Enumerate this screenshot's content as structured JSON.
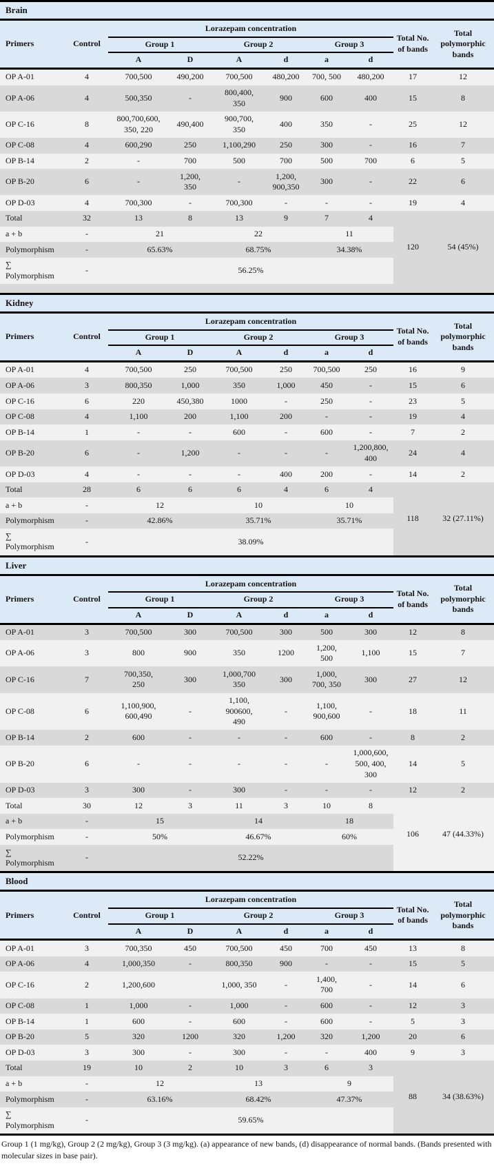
{
  "colors": {
    "header_bg": "#dce9f6",
    "row_light": "#f1f1f1",
    "row_dark": "#d9d9d9",
    "border": "#000000"
  },
  "headers": {
    "primers": "Primers",
    "control": "Control",
    "lorazepam": "Lorazepam concentration",
    "groups": [
      "Group 1",
      "Group 2",
      "Group 3"
    ],
    "subcols": [
      "A",
      "D",
      "A",
      "d",
      "a",
      "d"
    ],
    "total_bands": "Total No. of bands",
    "total_poly": "Total polymorphic bands"
  },
  "tables": [
    {
      "title": "Brain",
      "start_dark": false,
      "spacer_after": true,
      "rows": [
        [
          "OP A-01",
          "4",
          "700,500",
          "490,200",
          "700,500",
          "480,200",
          "700, 500",
          "480,200",
          "17",
          "12"
        ],
        [
          "OP A-06",
          "4",
          "500,350",
          "-",
          "800,400,\n350",
          "900",
          "600",
          "400",
          "15",
          "8"
        ],
        [
          "OP C-16",
          "8",
          "800,700,600,\n350, 220",
          "490,400",
          "900,700,\n350",
          "400",
          "350",
          "-",
          "25",
          "12"
        ],
        [
          "OP C-08",
          "4",
          "600,290",
          "250",
          "1,100,290",
          "250",
          "300",
          "-",
          "16",
          "7"
        ],
        [
          "OP B-14",
          "2",
          "-",
          "700",
          "500",
          "700",
          "500",
          "700",
          "6",
          "5"
        ],
        [
          "OP B-20",
          "6",
          "-",
          "1,200,\n350",
          "-",
          "1,200,\n900,350",
          "300",
          "-",
          "22",
          "6"
        ],
        [
          "OP D-03",
          "4",
          "700,300",
          "-",
          "700,300",
          "-",
          "-",
          "-",
          "19",
          "4"
        ]
      ],
      "total": [
        "Total",
        "32",
        "13",
        "8",
        "13",
        "9",
        "7",
        "4"
      ],
      "ab": [
        "a + b",
        "-",
        "21",
        "22",
        "11"
      ],
      "poly": [
        "Polymorphism",
        "-",
        "65.63%",
        "68.75%",
        "34.38%"
      ],
      "sigma": [
        "∑\nPolymorphism",
        "-",
        "56.25%"
      ],
      "grand": [
        "120",
        "54 (45%)"
      ]
    },
    {
      "title": "Kidney",
      "start_dark": false,
      "spacer_after": false,
      "rows": [
        [
          "OP A-01",
          "4",
          "700,500",
          "250",
          "700,500",
          "250",
          "700,500",
          "250",
          "16",
          "9"
        ],
        [
          "OP A-06",
          "3",
          "800,350",
          "1,000",
          "350",
          "1,000",
          "450",
          "-",
          "15",
          "6"
        ],
        [
          "OP C-16",
          "6",
          "220",
          "450,380",
          "1000",
          "-",
          "250",
          "-",
          "23",
          "5"
        ],
        [
          "OP C-08",
          "4",
          "1,100",
          "200",
          "1,100",
          "200",
          "-",
          "-",
          "19",
          "4"
        ],
        [
          "OP B-14",
          "1",
          "-",
          "-",
          "600",
          "-",
          "600",
          "-",
          "7",
          "2"
        ],
        [
          "OP B-20",
          "6",
          "-",
          "1,200",
          "-",
          "-",
          "-",
          "1,200,800,\n400",
          "24",
          "4"
        ],
        [
          "OP D-03",
          "4",
          "-",
          "-",
          "-",
          "400",
          "200",
          "-",
          "14",
          "2"
        ]
      ],
      "total": [
        "Total",
        "28",
        "6",
        "6",
        "6",
        "4",
        "6",
        "4"
      ],
      "ab": [
        "a + b",
        "-",
        "12",
        "10",
        "10"
      ],
      "poly": [
        "Polymorphism",
        "-",
        "42.86%",
        "35.71%",
        "35.71%"
      ],
      "sigma": [
        "∑\nPolymorphism",
        "-",
        "38.09%"
      ],
      "grand": [
        "118",
        "32 (27.11%)"
      ]
    },
    {
      "title": "Liver",
      "start_dark": true,
      "spacer_after": false,
      "rows": [
        [
          "OP A-01",
          "3",
          "700,500",
          "300",
          "700,500",
          "300",
          "500",
          "300",
          "12",
          "8"
        ],
        [
          "OP A-06",
          "3",
          "800",
          "900",
          "350",
          "1200",
          "1,200,\n500",
          "1,100",
          "15",
          "7"
        ],
        [
          "OP C-16",
          "7",
          "700,350,\n250",
          "300",
          "1,000,700\n350",
          "300",
          "1,000,\n700, 350",
          "300",
          "27",
          "12"
        ],
        [
          "OP C-08",
          "6",
          "1,100,900,\n600,490",
          "-",
          "1,100,\n900600,\n490",
          "-",
          "1,100,\n900,600",
          "-",
          "18",
          "11"
        ],
        [
          "OP B-14",
          "2",
          "600",
          "-",
          "-",
          "-",
          "600",
          "-",
          "8",
          "2"
        ],
        [
          "OP B-20",
          "6",
          "-",
          "-",
          "-",
          "-",
          "-",
          "1,000,600,\n500, 400,\n300",
          "14",
          "5"
        ],
        [
          "OP D-03",
          "3",
          "300",
          "-",
          "300",
          "-",
          "-",
          "-",
          "12",
          "2"
        ]
      ],
      "total": [
        "Total",
        "30",
        "12",
        "3",
        "11",
        "3",
        "10",
        "8"
      ],
      "ab": [
        "a + b",
        "-",
        "15",
        "14",
        "18"
      ],
      "poly": [
        "Polymorphism",
        "-",
        "50%",
        "46.67%",
        "60%"
      ],
      "sigma": [
        "∑\nPolymorphism",
        "-",
        "52.22%"
      ],
      "grand": [
        "106",
        "47 (44.33%)"
      ]
    },
    {
      "title": "Blood",
      "start_dark": false,
      "spacer_after": false,
      "rows": [
        [
          "OP A-01",
          "3",
          "700,350",
          "450",
          "700,500",
          "450",
          "700",
          "450",
          "13",
          "8"
        ],
        [
          "OP A-06",
          "4",
          "1,000,350",
          "-",
          "800,350",
          "900",
          "-",
          "-",
          "15",
          "5"
        ],
        [
          "OP C-16",
          "2",
          "1,200,600",
          "",
          "1,000, 350",
          "-",
          "1,400,\n700",
          "-",
          "14",
          "6"
        ],
        [
          "OP C-08",
          "1",
          "1,000",
          "-",
          "1,000",
          "-",
          "600",
          "-",
          "12",
          "3"
        ],
        [
          "OP B-14",
          "1",
          "600",
          "-",
          "600",
          "-",
          "600",
          "-",
          "5",
          "3"
        ],
        [
          "OP B-20",
          "5",
          "320",
          "1200",
          "320",
          "1,200",
          "320",
          "1,200",
          "20",
          "6"
        ],
        [
          "OP D-03",
          "3",
          "300",
          "-",
          "300",
          "-",
          "-",
          "400",
          "9",
          "3"
        ]
      ],
      "total": [
        "Total",
        "19",
        "10",
        "2",
        "10",
        "3",
        "6",
        "3"
      ],
      "ab": [
        "a + b",
        "-",
        "12",
        "13",
        "9"
      ],
      "poly": [
        "Polymorphism",
        "-",
        "63.16%",
        "68.42%",
        "47.37%"
      ],
      "sigma": [
        "∑\nPolymorphism",
        "-",
        "59.65%"
      ],
      "grand": [
        "88",
        "34 (38.63%)"
      ]
    }
  ],
  "footnote": "Group 1 (1 mg/kg), Group 2 (2 mg/kg), Group 3 (3 mg/kg). (a) appearance of new bands, (d) disappearance of normal bands. (Bands presented with molecular sizes in base pair)."
}
